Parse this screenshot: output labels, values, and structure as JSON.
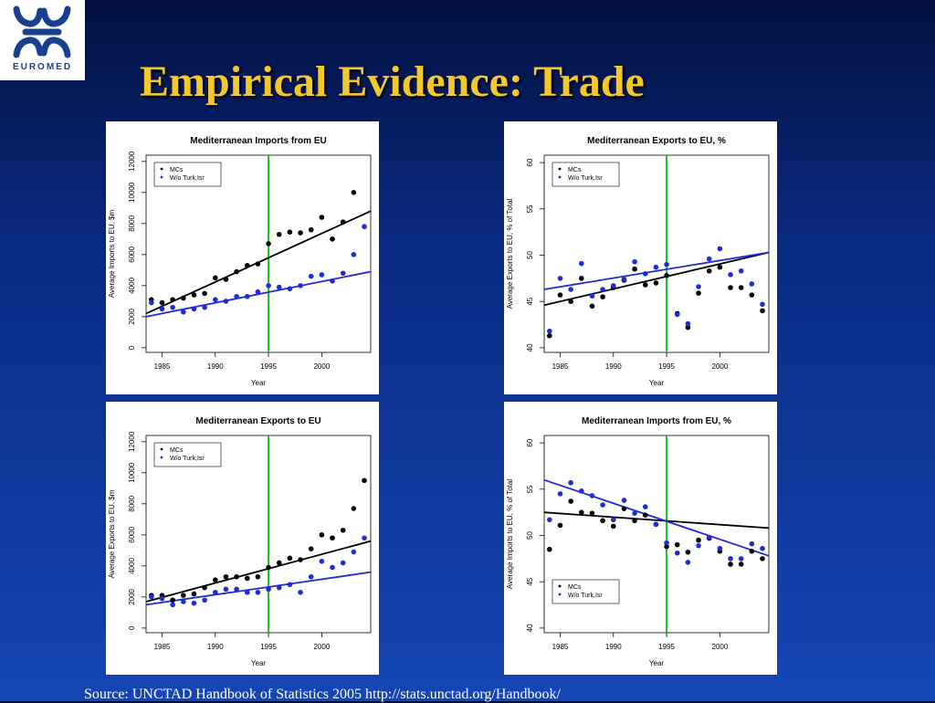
{
  "logo": {
    "text": "EUROMED"
  },
  "title": "Empirical Evidence: Trade",
  "source": "Source: UNCTAD Handbook of Statistics 2005 http://stats.unctad.org/Handbook/",
  "colors": {
    "mcs": "#000000",
    "wo": "#1f2bd6",
    "vline": "#1fbe1f"
  },
  "chart_data": [
    {
      "type": "scatter",
      "title": "Mediterranean Imports from EU",
      "xlabel": "Year",
      "ylabel": "Average Imports to EU, $m",
      "xlim": [
        1983.5,
        2004.6
      ],
      "ylim": [
        -300,
        12400
      ],
      "xticks": [
        1985,
        1990,
        1995,
        2000
      ],
      "yticks": [
        0,
        2000,
        4000,
        6000,
        8000,
        10000,
        12000
      ],
      "legend_position": "top-left",
      "vline": 1995,
      "series": [
        {
          "name": "MCs",
          "x": [
            1984,
            1985,
            1986,
            1987,
            1988,
            1989,
            1990,
            1991,
            1992,
            1993,
            1994,
            1995,
            1996,
            1997,
            1998,
            1999,
            2000,
            2001,
            2002,
            2003
          ],
          "y": [
            3100,
            2900,
            3100,
            3200,
            3400,
            3500,
            4500,
            4400,
            4900,
            5300,
            5400,
            6700,
            7300,
            7450,
            7400,
            7600,
            8400,
            7000,
            8100,
            10000
          ],
          "fit": [
            [
              1983.5,
              2200
            ],
            [
              2004.6,
              8800
            ]
          ]
        },
        {
          "name": "W/o Turk,Isr",
          "x": [
            1984,
            1985,
            1986,
            1987,
            1988,
            1989,
            1990,
            1991,
            1992,
            1993,
            1994,
            1995,
            1996,
            1997,
            1998,
            1999,
            2000,
            2001,
            2002,
            2003,
            2004
          ],
          "y": [
            2900,
            2500,
            2600,
            2300,
            2500,
            2600,
            3100,
            3000,
            3300,
            3300,
            3600,
            4000,
            3900,
            3800,
            4000,
            4600,
            4700,
            4300,
            4800,
            6000,
            7800
          ],
          "fit": [
            [
              1983.5,
              2000
            ],
            [
              2004.6,
              4900
            ]
          ]
        }
      ]
    },
    {
      "type": "scatter",
      "title": "Mediterranean Exports to EU, %",
      "xlabel": "Year",
      "ylabel": "Average Exports to EU, % of Total",
      "xlim": [
        1983.5,
        2004.6
      ],
      "ylim": [
        39.5,
        60.8
      ],
      "xticks": [
        1985,
        1990,
        1995,
        2000
      ],
      "yticks": [
        40,
        45,
        50,
        55,
        60
      ],
      "legend_position": "top-left",
      "vline": 1995,
      "series": [
        {
          "name": "MCs",
          "x": [
            1984,
            1985,
            1986,
            1987,
            1988,
            1989,
            1990,
            1991,
            1992,
            1993,
            1994,
            1995,
            1996,
            1997,
            1998,
            1999,
            2000,
            2001,
            2002,
            2003,
            2004
          ],
          "y": [
            41.3,
            45.7,
            45.0,
            47.5,
            44.5,
            45.5,
            46.5,
            47.3,
            48.5,
            46.8,
            47.0,
            47.8,
            43.7,
            42.2,
            45.9,
            48.3,
            48.7,
            46.5,
            46.5,
            45.7,
            44.0
          ],
          "fit": [
            [
              1983.5,
              44.6
            ],
            [
              2004.6,
              50.3
            ]
          ]
        },
        {
          "name": "W/o Turk,Isr",
          "x": [
            1984,
            1985,
            1986,
            1987,
            1988,
            1989,
            1990,
            1991,
            1992,
            1993,
            1994,
            1995,
            1996,
            1997,
            1998,
            1999,
            2000,
            2001,
            2002,
            2003,
            2004
          ],
          "y": [
            41.8,
            47.5,
            46.3,
            49.1,
            45.6,
            46.3,
            46.7,
            47.4,
            49.3,
            48.0,
            48.7,
            49.0,
            43.6,
            42.6,
            46.6,
            49.6,
            50.7,
            47.9,
            48.3,
            46.9,
            44.7
          ],
          "fit": [
            [
              1983.5,
              46.3
            ],
            [
              2004.6,
              50.3
            ]
          ]
        }
      ]
    },
    {
      "type": "scatter",
      "title": "Mediterranean Exports to EU",
      "xlabel": "Year",
      "ylabel": "Average Exports to EU, $m",
      "xlim": [
        1983.5,
        2004.6
      ],
      "ylim": [
        -300,
        12400
      ],
      "xticks": [
        1985,
        1990,
        1995,
        2000
      ],
      "yticks": [
        0,
        2000,
        4000,
        6000,
        8000,
        10000,
        12000
      ],
      "legend_position": "top-left",
      "vline": 1995,
      "series": [
        {
          "name": "MCs",
          "x": [
            1984,
            1985,
            1986,
            1987,
            1988,
            1989,
            1990,
            1991,
            1992,
            1993,
            1994,
            1995,
            1996,
            1997,
            1998,
            1999,
            2000,
            2001,
            2002,
            2003,
            2004
          ],
          "y": [
            2100,
            2100,
            1800,
            2100,
            2200,
            2600,
            3100,
            3300,
            3300,
            3200,
            3300,
            3900,
            4200,
            4500,
            4400,
            5100,
            6000,
            5800,
            6300,
            7700,
            9500
          ],
          "fit": [
            [
              1983.5,
              1700
            ],
            [
              2004.6,
              5600
            ]
          ]
        },
        {
          "name": "W/o Turk,Isr",
          "x": [
            1984,
            1985,
            1986,
            1987,
            1988,
            1989,
            1990,
            1991,
            1992,
            1993,
            1994,
            1995,
            1996,
            1997,
            1998,
            1999,
            2000,
            2001,
            2002,
            2003,
            2004
          ],
          "y": [
            2000,
            1900,
            1500,
            1700,
            1600,
            1800,
            2300,
            2500,
            2500,
            2300,
            2300,
            2500,
            2600,
            2800,
            2300,
            3300,
            4300,
            3900,
            4200,
            4900,
            5800
          ],
          "fit": [
            [
              1983.5,
              1500
            ],
            [
              2004.6,
              3600
            ]
          ]
        }
      ]
    },
    {
      "type": "scatter",
      "title": "Mediterranean Imports from EU, %",
      "xlabel": "Year",
      "ylabel": "Average Imports to EU, % of Total",
      "xlim": [
        1983.5,
        2004.6
      ],
      "ylim": [
        39.5,
        60.8
      ],
      "xticks": [
        1985,
        1990,
        1995,
        2000
      ],
      "yticks": [
        40,
        45,
        50,
        55,
        60
      ],
      "legend_position": "bottom-left",
      "vline": 1995,
      "series": [
        {
          "name": "MCs",
          "x": [
            1984,
            1985,
            1986,
            1987,
            1988,
            1989,
            1990,
            1991,
            1992,
            1993,
            1994,
            1995,
            1996,
            1997,
            1998,
            1999,
            2000,
            2001,
            2002,
            2003,
            2004
          ],
          "y": [
            48.5,
            51.1,
            53.7,
            52.5,
            52.4,
            51.6,
            51.0,
            52.9,
            51.6,
            52.2,
            51.2,
            48.8,
            49.0,
            48.2,
            49.5,
            49.7,
            48.3,
            46.9,
            46.9,
            48.3,
            47.5
          ],
          "fit": [
            [
              1983.5,
              52.5
            ],
            [
              2004.6,
              50.8
            ]
          ]
        },
        {
          "name": "W/o Turk,Isr",
          "x": [
            1984,
            1985,
            1986,
            1987,
            1988,
            1989,
            1990,
            1991,
            1992,
            1993,
            1994,
            1995,
            1996,
            1997,
            1998,
            1999,
            2000,
            2001,
            2002,
            2003,
            2004
          ],
          "y": [
            51.7,
            54.5,
            55.7,
            54.8,
            54.3,
            53.3,
            51.7,
            53.8,
            52.4,
            53.1,
            51.2,
            49.2,
            48.1,
            47.1,
            48.9,
            49.8,
            48.6,
            47.5,
            47.5,
            49.1,
            48.6
          ],
          "fit": [
            [
              1983.5,
              56.0
            ],
            [
              2004.6,
              47.8
            ]
          ]
        }
      ]
    }
  ]
}
